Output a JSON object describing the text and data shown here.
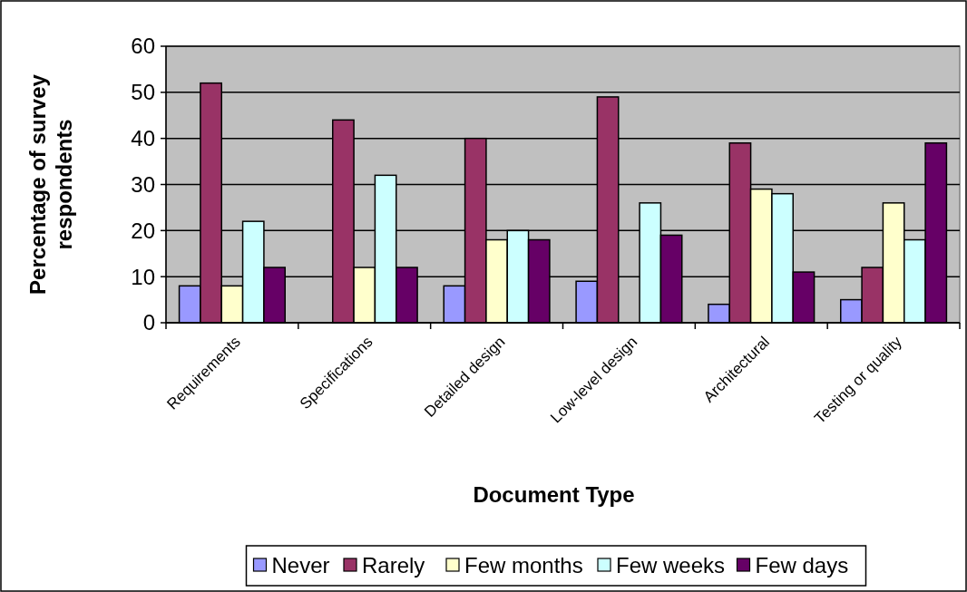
{
  "chart_data": {
    "type": "bar",
    "xlabel": "Document Type",
    "ylabel": "Percentage of survey respondents",
    "categories": [
      "Requirements",
      "Specifications",
      "Detailed design",
      "Low-level design",
      "Architectural",
      "Testing or quality"
    ],
    "series": [
      {
        "name": "Never",
        "color": "#9999ff",
        "values": [
          8,
          0,
          8,
          9,
          4,
          5
        ]
      },
      {
        "name": "Rarely",
        "color": "#993366",
        "values": [
          52,
          44,
          40,
          49,
          39,
          12
        ]
      },
      {
        "name": "Few months",
        "color": "#ffffcc",
        "values": [
          8,
          12,
          18,
          0,
          29,
          26
        ]
      },
      {
        "name": "Few weeks",
        "color": "#ccffff",
        "values": [
          22,
          32,
          20,
          26,
          28,
          18
        ]
      },
      {
        "name": "Few days",
        "color": "#660066",
        "values": [
          12,
          12,
          18,
          19,
          11,
          39
        ]
      }
    ],
    "ylim": [
      0,
      60
    ],
    "yticks": [
      0,
      10,
      20,
      30,
      40,
      50,
      60
    ],
    "grid": "y",
    "legend": "bottom"
  }
}
